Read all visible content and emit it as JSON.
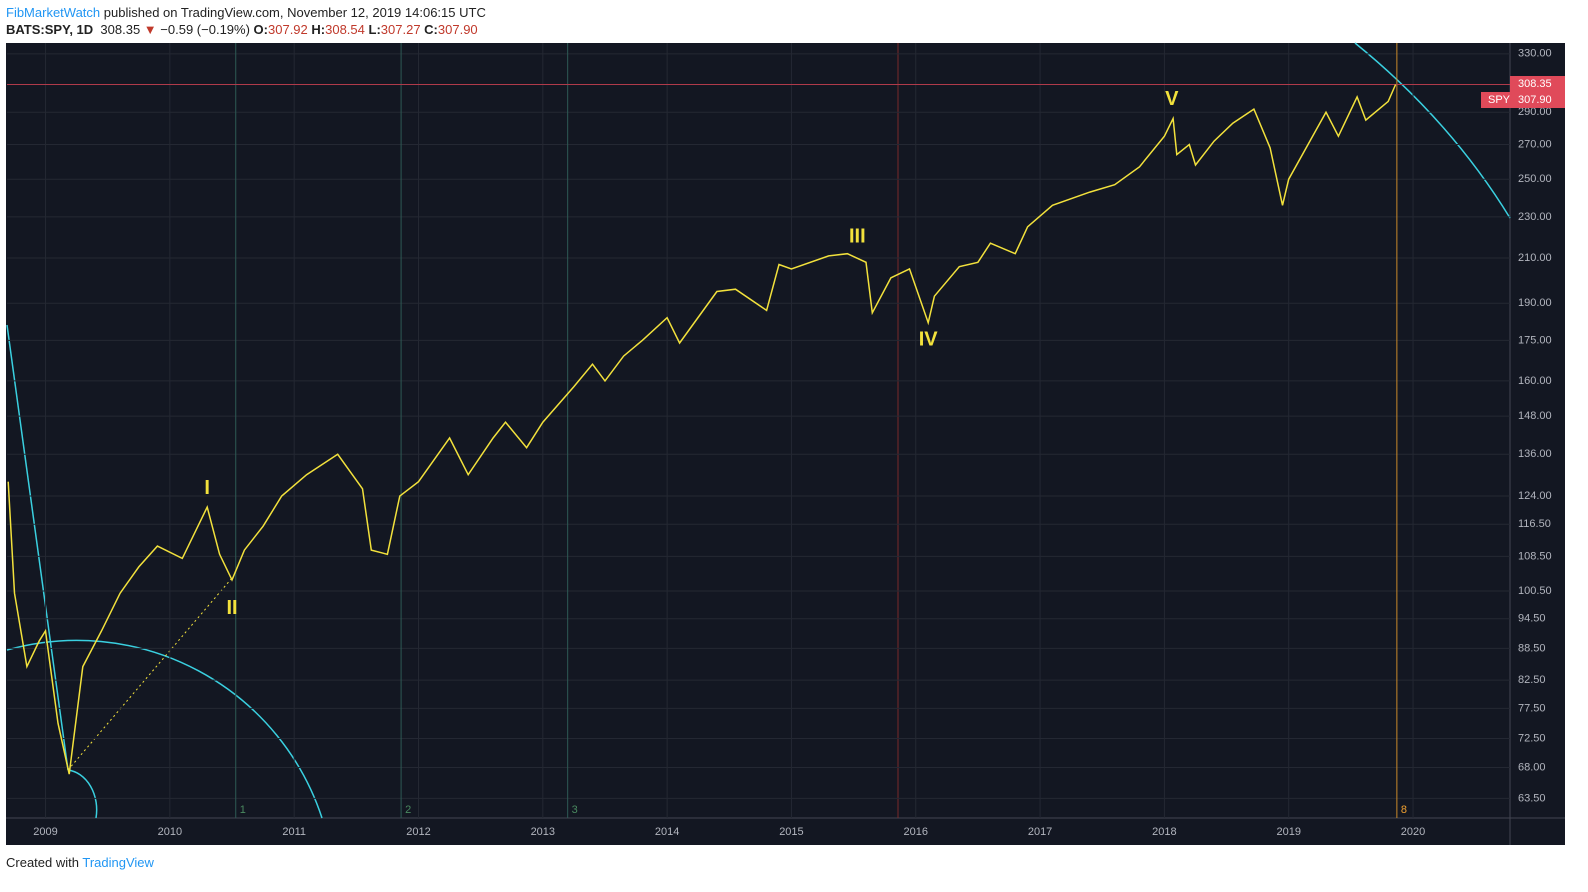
{
  "header": {
    "author": "FibMarketWatch",
    "published": "published on TradingView.com, November 12, 2019 14:06:15 UTC",
    "symbol": "BATS:SPY, 1D",
    "last": "308.35",
    "change": "−0.59 (−0.19%)",
    "o_label": "O:",
    "o": "307.92",
    "h_label": "H:",
    "h": "308.54",
    "l_label": "L:",
    "l": "307.27",
    "c_label": "C:",
    "c": "307.90"
  },
  "price_tags": {
    "last": "308.35",
    "symbol": "SPY",
    "close": "307.90"
  },
  "footer": {
    "created": "Created with",
    "brand": "TradingView"
  },
  "chart_data": {
    "type": "line",
    "log_scale": true,
    "grid": true,
    "color": "#f2e13c",
    "bg": "#131722",
    "x": [
      2008.7,
      2008.75,
      2008.85,
      2008.95,
      2009.0,
      2009.1,
      2009.19,
      2009.3,
      2009.45,
      2009.6,
      2009.75,
      2009.9,
      2010.1,
      2010.3,
      2010.4,
      2010.5,
      2010.6,
      2010.75,
      2010.9,
      2011.1,
      2011.35,
      2011.55,
      2011.62,
      2011.75,
      2011.85,
      2012.0,
      2012.25,
      2012.4,
      2012.6,
      2012.7,
      2012.87,
      2013.0,
      2013.25,
      2013.4,
      2013.5,
      2013.65,
      2013.8,
      2014.0,
      2014.1,
      2014.4,
      2014.55,
      2014.8,
      2014.9,
      2015.0,
      2015.3,
      2015.45,
      2015.6,
      2015.65,
      2015.8,
      2015.95,
      2016.1,
      2016.15,
      2016.35,
      2016.5,
      2016.6,
      2016.8,
      2016.9,
      2017.1,
      2017.4,
      2017.6,
      2017.8,
      2018.0,
      2018.07,
      2018.1,
      2018.2,
      2018.25,
      2018.4,
      2018.55,
      2018.72,
      2018.85,
      2018.95,
      2019.0,
      2019.3,
      2019.4,
      2019.55,
      2019.62,
      2019.8,
      2019.86
    ],
    "series": [
      {
        "name": "SPY",
        "color": "#f2e13c",
        "values": [
          128,
          100,
          85,
          90,
          92,
          75,
          67,
          85,
          92,
          100,
          106,
          111,
          108,
          121,
          109,
          103,
          110,
          116,
          124,
          130,
          136,
          126,
          110,
          109,
          124,
          128,
          141,
          130,
          141,
          146,
          138,
          146,
          158,
          166,
          160,
          169,
          175,
          184,
          174,
          195,
          196,
          187,
          207,
          205,
          211,
          212,
          208,
          186,
          201,
          205,
          182,
          193,
          206,
          208,
          217,
          212,
          225,
          236,
          243,
          247,
          257,
          275,
          286,
          264,
          270,
          258,
          272,
          283,
          292,
          268,
          236,
          250,
          290,
          275,
          300,
          285,
          297,
          308.35
        ]
      }
    ],
    "xlim": [
      2008.69,
      2020.78
    ],
    "xticks": [
      2009,
      2010,
      2011,
      2012,
      2013,
      2014,
      2015,
      2016,
      2017,
      2018,
      2019,
      2020
    ],
    "ylim": [
      60.8,
      338
    ],
    "yticks": [
      {
        "value": 330,
        "label": "330.00"
      },
      {
        "value": 290,
        "label": "290.00"
      },
      {
        "value": 270,
        "label": "270.00"
      },
      {
        "value": 250,
        "label": "250.00"
      },
      {
        "value": 230,
        "label": "230.00"
      },
      {
        "value": 210,
        "label": "210.00"
      },
      {
        "value": 190,
        "label": "190.00"
      },
      {
        "value": 175,
        "label": "175.00"
      },
      {
        "value": 160,
        "label": "160.00"
      },
      {
        "value": 148,
        "label": "148.00"
      },
      {
        "value": 136,
        "label": "136.00"
      },
      {
        "value": 124,
        "label": "124.00"
      },
      {
        "value": 116.5,
        "label": "116.50"
      },
      {
        "value": 108.5,
        "label": "108.50"
      },
      {
        "value": 100.5,
        "label": "100.50"
      },
      {
        "value": 94.5,
        "label": "94.50"
      },
      {
        "value": 88.5,
        "label": "88.50"
      },
      {
        "value": 82.5,
        "label": "82.50"
      },
      {
        "value": 77.5,
        "label": "77.50"
      },
      {
        "value": 72.5,
        "label": "72.50"
      },
      {
        "value": 68,
        "label": "68.00"
      },
      {
        "value": 63.5,
        "label": "63.50"
      }
    ],
    "last_price": 308.35,
    "annotations": [
      {
        "text": "I",
        "x": 2010.3,
        "y": 126
      },
      {
        "text": "II",
        "x": 2010.5,
        "y": 96.6
      },
      {
        "text": "III",
        "x": 2015.53,
        "y": 220
      },
      {
        "text": "IV",
        "x": 2016.1,
        "y": 175
      },
      {
        "text": "V",
        "x": 2018.06,
        "y": 298
      }
    ],
    "fib_zones": [
      {
        "label": "1",
        "x": 2010.53
      },
      {
        "label": "2",
        "x": 2011.86
      },
      {
        "label": "3",
        "x": 2013.2
      },
      {
        "label": "8",
        "x": 2019.87
      }
    ]
  }
}
